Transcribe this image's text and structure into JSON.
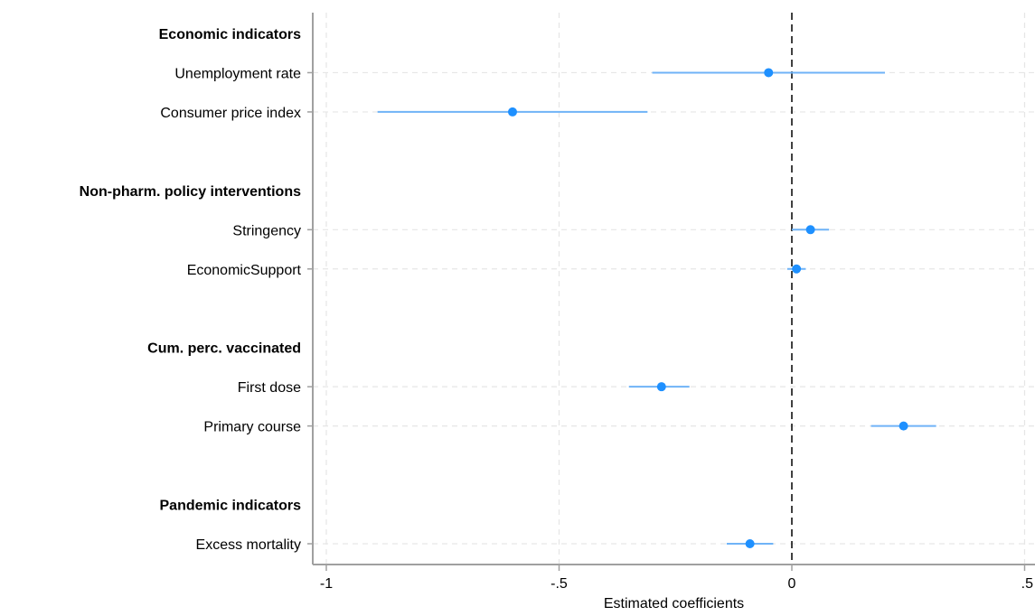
{
  "chart_data": {
    "type": "scatter",
    "subtype": "coefficient-plot",
    "orientation": "horizontal",
    "xlabel": "Estimated coefficients",
    "xlim": [
      -1.02,
      0.52
    ],
    "xticks": [
      -1,
      -0.5,
      0,
      0.5
    ],
    "xtick_labels": [
      "-1",
      "-.5",
      "0",
      ".5"
    ],
    "reference_line": {
      "x": 0,
      "style": "dashed",
      "color": "#000000"
    },
    "grid": true,
    "groups": [
      {
        "label": "Economic indicators",
        "items": [
          {
            "label": "Unemployment rate",
            "estimate": -0.05,
            "ci": [
              -0.3,
              0.2
            ]
          },
          {
            "label": "Consumer price index",
            "estimate": -0.6,
            "ci": [
              -0.89,
              -0.31
            ]
          }
        ]
      },
      {
        "label": "Non-pharm. policy interventions",
        "items": [
          {
            "label": "Stringency",
            "estimate": 0.04,
            "ci": [
              0.0,
              0.08
            ]
          },
          {
            "label": "EconomicSupport",
            "estimate": 0.01,
            "ci": [
              -0.01,
              0.03
            ]
          }
        ]
      },
      {
        "label": "Cum. perc. vaccinated",
        "items": [
          {
            "label": "First dose",
            "estimate": -0.28,
            "ci": [
              -0.35,
              -0.22
            ]
          },
          {
            "label": "Primary course",
            "estimate": 0.24,
            "ci": [
              0.17,
              0.31
            ]
          }
        ]
      },
      {
        "label": "Pandemic indicators",
        "items": [
          {
            "label": "Excess mortality",
            "estimate": -0.09,
            "ci": [
              -0.14,
              -0.04
            ]
          }
        ]
      }
    ],
    "colors": {
      "point": "#1e90ff",
      "ci": "#6fb3f7",
      "grid": "#e6e6e6",
      "axis": "#a0a0a0"
    }
  }
}
